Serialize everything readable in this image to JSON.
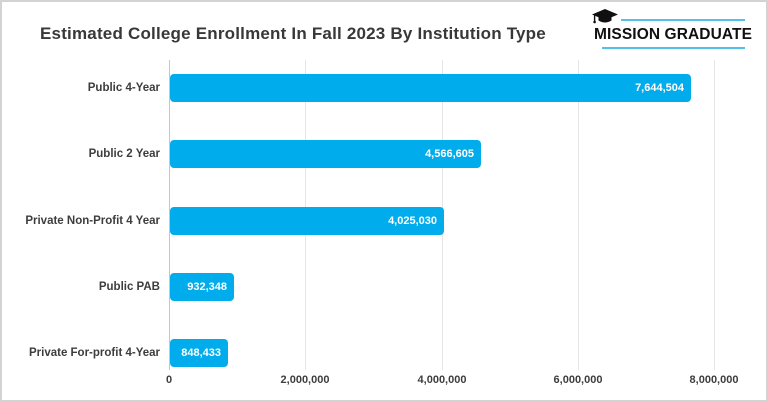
{
  "header": {
    "title": "Estimated College Enrollment In Fall 2023 By Institution Type",
    "logo": {
      "text": "MISSION GRADUATE",
      "icon": "graduation-cap-icon",
      "accent_color": "#54C0E8"
    }
  },
  "colors": {
    "bar": "#00ACEC",
    "gridline": "#e5e5e5",
    "axis_line": "#c6c6c6",
    "label_text": "#3d3d3d",
    "title_text": "#383838",
    "value_text": "#ffffff",
    "card_border": "#d3d3d3",
    "background": "#ffffff"
  },
  "chart_data": {
    "type": "bar",
    "orientation": "horizontal",
    "title": "Estimated College Enrollment In Fall 2023 By Institution Type",
    "xlabel": "",
    "ylabel": "",
    "categories": [
      "Public 4-Year",
      "Public 2 Year",
      "Private Non-Profit 4 Year",
      "Public PAB",
      "Private For-profit 4-Year"
    ],
    "values": [
      7644504,
      4566605,
      4025030,
      932348,
      848433
    ],
    "value_labels": [
      "7,644,504",
      "4,566,605",
      "4,025,030",
      "932,348",
      "848,433"
    ],
    "xlim": [
      0,
      8000000
    ],
    "x_ticks": [
      0,
      2000000,
      4000000,
      6000000,
      8000000
    ],
    "x_tick_labels": [
      "0",
      "2,000,000",
      "4,000,000",
      "6,000,000",
      "8,000,000"
    ],
    "grid": true,
    "legend": false,
    "value_labels_inside_bars": true
  }
}
